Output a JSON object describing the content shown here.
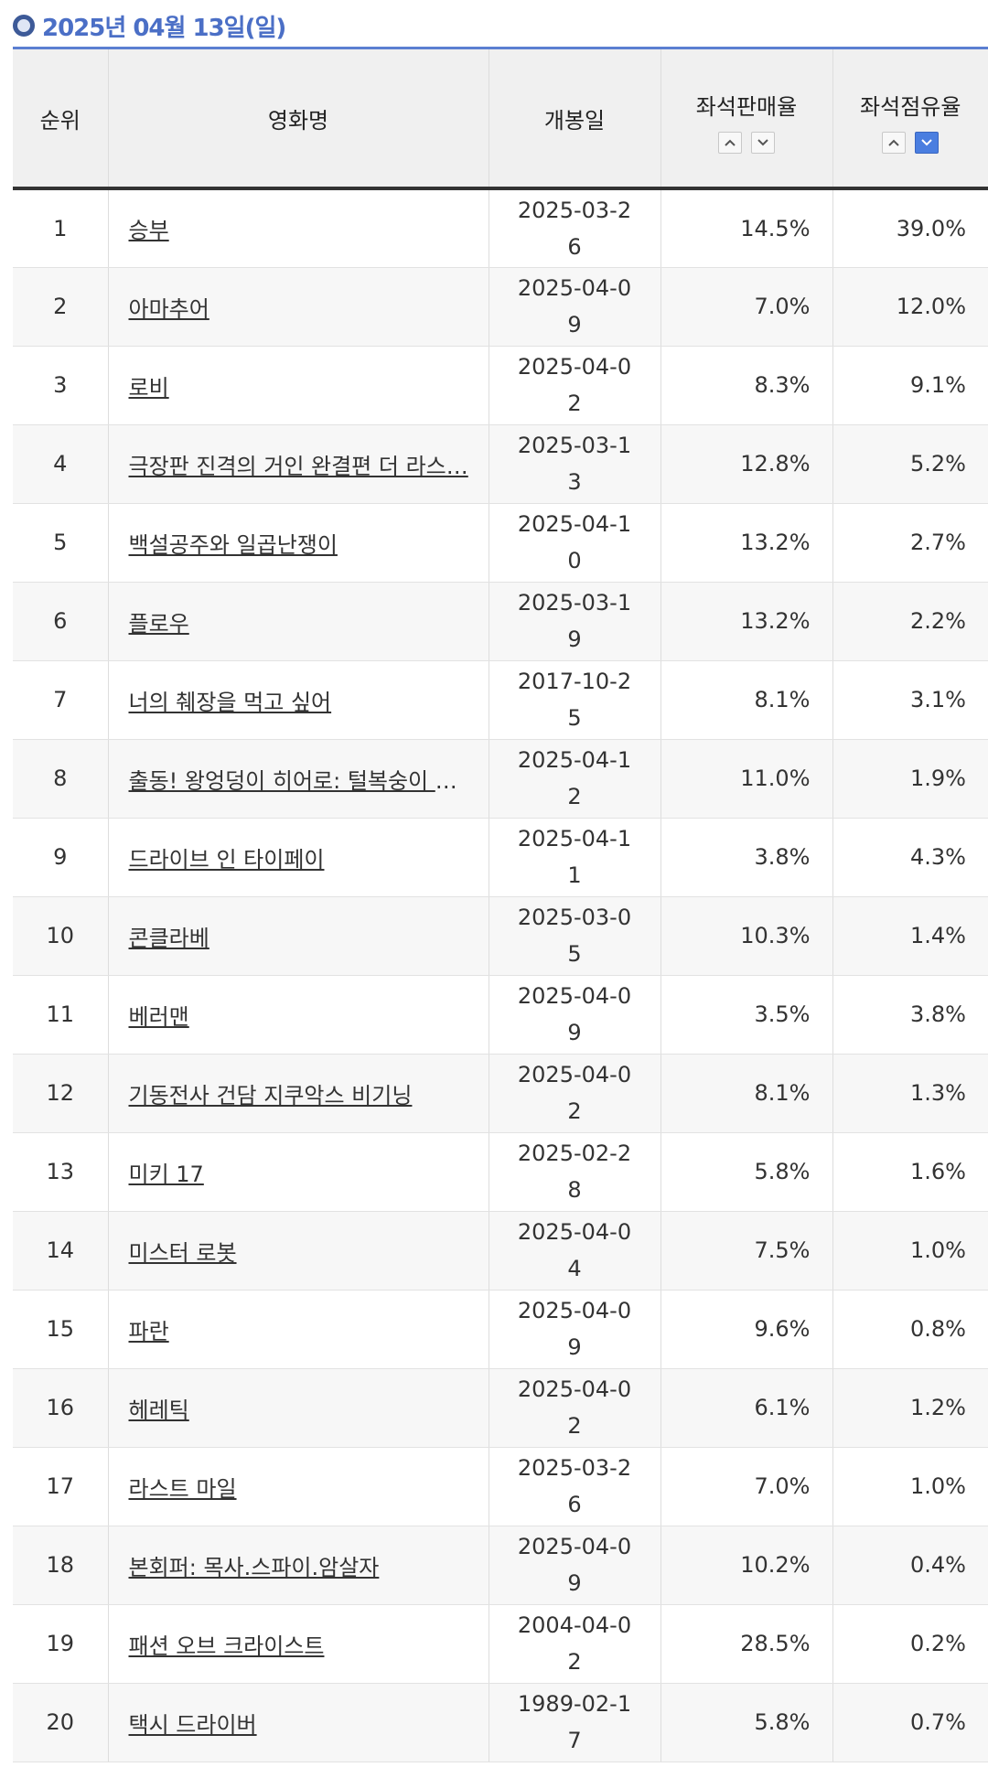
{
  "heading": {
    "date": "2025년 04월 13일(일)"
  },
  "columns": {
    "rank": "순위",
    "title": "영화명",
    "release": "개봉일",
    "sales_rate": "좌석판매율",
    "share_rate": "좌석점유율"
  },
  "sort": {
    "active": "share_rate-desc"
  },
  "colors": {
    "accent": "#4b6fc6",
    "rule": "#5b7fd1",
    "active_sort": "#4a7ee0"
  },
  "rows": [
    {
      "rank": "1",
      "title": "승부",
      "release": "2025-03-26",
      "sales": "14.5%",
      "share": "39.0%"
    },
    {
      "rank": "2",
      "title": "아마추어",
      "release": "2025-04-09",
      "sales": "7.0%",
      "share": "12.0%"
    },
    {
      "rank": "3",
      "title": "로비",
      "release": "2025-04-02",
      "sales": "8.3%",
      "share": "9.1%"
    },
    {
      "rank": "4",
      "title": "극장판 진격의 거인 완결편 더 라스…",
      "release": "2025-03-13",
      "sales": "12.8%",
      "share": "5.2%"
    },
    {
      "rank": "5",
      "title": "백설공주와 일곱난쟁이",
      "release": "2025-04-10",
      "sales": "13.2%",
      "share": "2.7%"
    },
    {
      "rank": "6",
      "title": "플로우",
      "release": "2025-03-19",
      "sales": "13.2%",
      "share": "2.2%"
    },
    {
      "rank": "7",
      "title": "너의 췌장을 먹고 싶어",
      "release": "2017-10-25",
      "sales": "8.1%",
      "share": "3.1%"
    },
    {
      "rank": "8",
      "title": "출동! 왕엉덩이 히어로: 털복숭이 꼬…",
      "release": "2025-04-12",
      "sales": "11.0%",
      "share": "1.9%"
    },
    {
      "rank": "9",
      "title": "드라이브 인 타이페이",
      "release": "2025-04-11",
      "sales": "3.8%",
      "share": "4.3%"
    },
    {
      "rank": "10",
      "title": "콘클라베",
      "release": "2025-03-05",
      "sales": "10.3%",
      "share": "1.4%"
    },
    {
      "rank": "11",
      "title": "베러맨",
      "release": "2025-04-09",
      "sales": "3.5%",
      "share": "3.8%"
    },
    {
      "rank": "12",
      "title": "기동전사 건담 지쿠악스 비기닝",
      "release": "2025-04-02",
      "sales": "8.1%",
      "share": "1.3%"
    },
    {
      "rank": "13",
      "title": "미키 17",
      "release": "2025-02-28",
      "sales": "5.8%",
      "share": "1.6%"
    },
    {
      "rank": "14",
      "title": "미스터 로봇",
      "release": "2025-04-04",
      "sales": "7.5%",
      "share": "1.0%"
    },
    {
      "rank": "15",
      "title": "파란",
      "release": "2025-04-09",
      "sales": "9.6%",
      "share": "0.8%"
    },
    {
      "rank": "16",
      "title": "헤레틱",
      "release": "2025-04-02",
      "sales": "6.1%",
      "share": "1.2%"
    },
    {
      "rank": "17",
      "title": "라스트 마일",
      "release": "2025-03-26",
      "sales": "7.0%",
      "share": "1.0%"
    },
    {
      "rank": "18",
      "title": "본회퍼: 목사.스파이.암살자",
      "release": "2025-04-09",
      "sales": "10.2%",
      "share": "0.4%"
    },
    {
      "rank": "19",
      "title": "패션 오브 크라이스트",
      "release": "2004-04-02",
      "sales": "28.5%",
      "share": "0.2%"
    },
    {
      "rank": "20",
      "title": "택시 드라이버",
      "release": "1989-02-17",
      "sales": "5.8%",
      "share": "0.7%"
    }
  ]
}
